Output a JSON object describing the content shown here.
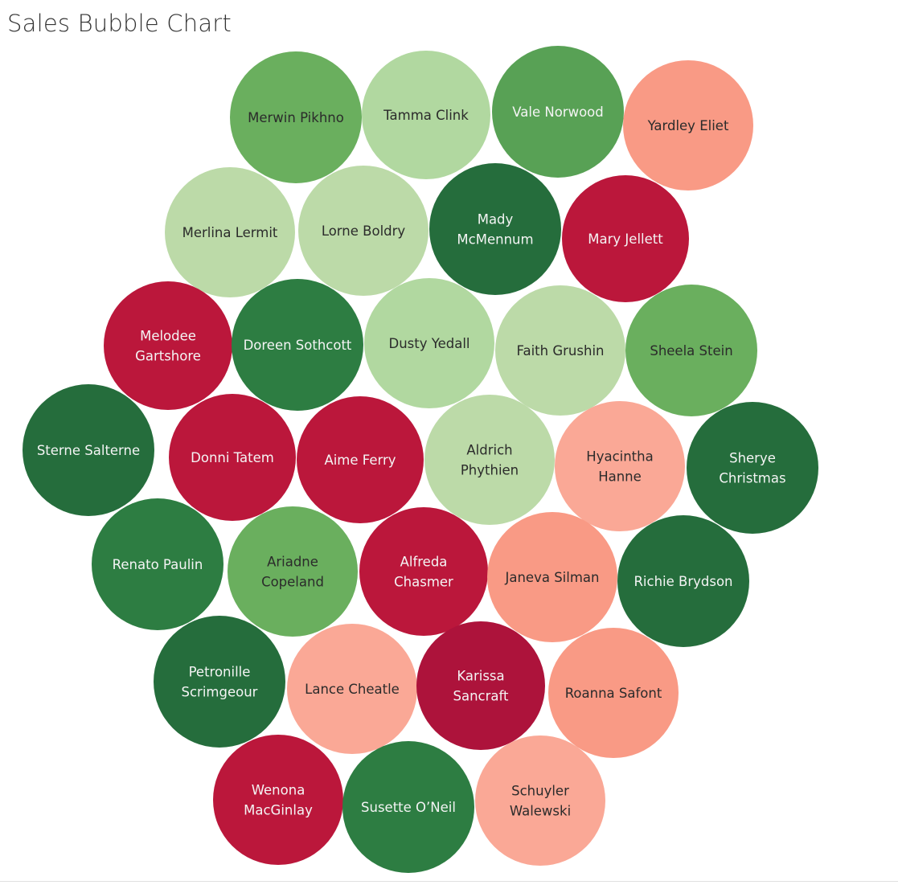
{
  "chart_data": {
    "type": "bubble",
    "title": "Sales Bubble Chart",
    "bubbles": [
      {
        "name": "Merwin Pikhno",
        "lines": [
          "Merwin Pikhno"
        ],
        "color": "#6aaf5e"
      },
      {
        "name": "Tamma Clink",
        "lines": [
          "Tamma Clink"
        ],
        "color": "#b1d8a0"
      },
      {
        "name": "Vale Norwood",
        "lines": [
          "Vale Norwood"
        ],
        "color": "#58a155"
      },
      {
        "name": "Yardley Eliet",
        "lines": [
          "Yardley Eliet"
        ],
        "color": "#f99a85"
      },
      {
        "name": "Merlina Lermit",
        "lines": [
          "Merlina Lermit"
        ],
        "color": "#bcdaa8"
      },
      {
        "name": "Lorne Boldry",
        "lines": [
          "Lorne Boldry"
        ],
        "color": "#bcdaa8"
      },
      {
        "name": "Mady McMennum",
        "lines": [
          "Mady",
          "McMennum"
        ],
        "color": "#256d3c"
      },
      {
        "name": "Mary Jellett",
        "lines": [
          "Mary Jellett"
        ],
        "color": "#bb173b"
      },
      {
        "name": "Melodee Gartshore",
        "lines": [
          "Melodee",
          "Gartshore"
        ],
        "color": "#bb173b"
      },
      {
        "name": "Doreen Sothcott",
        "lines": [
          "Doreen Sothcott"
        ],
        "color": "#2d7d42"
      },
      {
        "name": "Dusty Yedall",
        "lines": [
          "Dusty Yedall"
        ],
        "color": "#b1d8a0"
      },
      {
        "name": "Faith Grushin",
        "lines": [
          "Faith Grushin"
        ],
        "color": "#bcdaa8"
      },
      {
        "name": "Sheela Stein",
        "lines": [
          "Sheela Stein"
        ],
        "color": "#6aaf5e"
      },
      {
        "name": "Sterne Salterne",
        "lines": [
          "Sterne Salterne"
        ],
        "color": "#256d3c"
      },
      {
        "name": "Donni Tatem",
        "lines": [
          "Donni Tatem"
        ],
        "color": "#bb173b"
      },
      {
        "name": "Aime Ferry",
        "lines": [
          "Aime Ferry"
        ],
        "color": "#bb173b"
      },
      {
        "name": "Aldrich Phythien",
        "lines": [
          "Aldrich",
          "Phythien"
        ],
        "color": "#bcdaa8"
      },
      {
        "name": "Hyacintha Hanne",
        "lines": [
          "Hyacintha",
          "Hanne"
        ],
        "color": "#faa896"
      },
      {
        "name": "Sherye Christmas",
        "lines": [
          "Sherye",
          "Christmas"
        ],
        "color": "#256d3c"
      },
      {
        "name": "Renato Paulin",
        "lines": [
          "Renato Paulin"
        ],
        "color": "#2d7d42"
      },
      {
        "name": "Ariadne Copeland",
        "lines": [
          "Ariadne",
          "Copeland"
        ],
        "color": "#6aaf5e"
      },
      {
        "name": "Alfreda Chasmer",
        "lines": [
          "Alfreda",
          "Chasmer"
        ],
        "color": "#bb173b"
      },
      {
        "name": "Janeva Silman",
        "lines": [
          "Janeva Silman"
        ],
        "color": "#f99a85"
      },
      {
        "name": "Richie Brydson",
        "lines": [
          "Richie Brydson"
        ],
        "color": "#256d3c"
      },
      {
        "name": "Petronille Scrimgeour",
        "lines": [
          "Petronille",
          "Scrimgeour"
        ],
        "color": "#256d3c"
      },
      {
        "name": "Lance Cheatle",
        "lines": [
          "Lance Cheatle"
        ],
        "color": "#faa896"
      },
      {
        "name": "Karissa Sancraft",
        "lines": [
          "Karissa",
          "Sancraft"
        ],
        "color": "#ad133b"
      },
      {
        "name": "Roanna Safont",
        "lines": [
          "Roanna Safont"
        ],
        "color": "#f99a85"
      },
      {
        "name": "Wenona MacGinlay",
        "lines": [
          "Wenona",
          "MacGinlay"
        ],
        "color": "#bb173b"
      },
      {
        "name": "Susette O’Neil",
        "lines": [
          "Susette O’Neil"
        ],
        "color": "#2d7d42"
      },
      {
        "name": "Schuyler Walewski",
        "lines": [
          "Schuyler",
          "Walewski"
        ],
        "color": "#faa896"
      }
    ]
  }
}
